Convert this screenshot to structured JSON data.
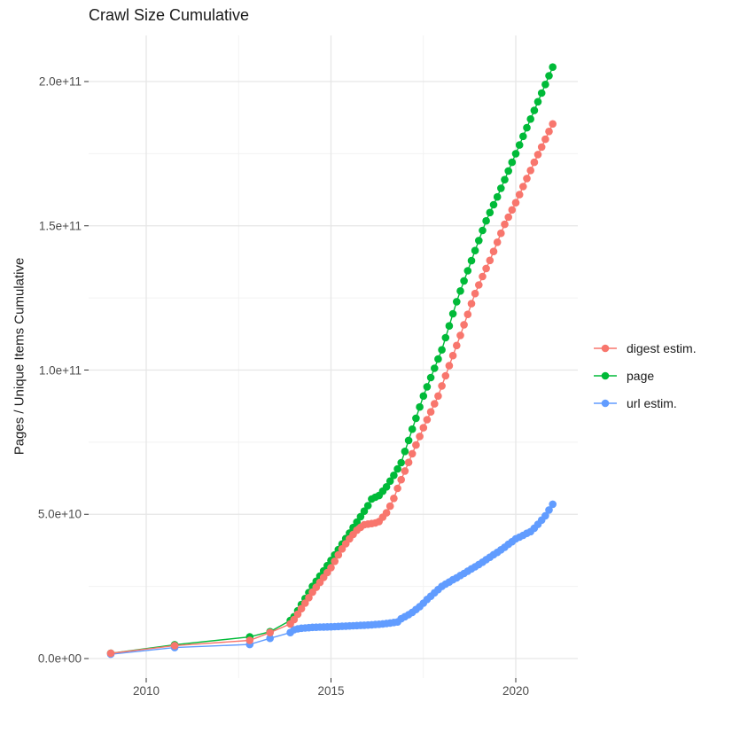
{
  "title": "Crawl Size Cumulative",
  "axes": {
    "y_label": "Pages / Unique Items Cumulative",
    "y_ticks": [
      {
        "label": "0.0e+00",
        "value_e9": 0
      },
      {
        "label": "5.0e+10",
        "value_e9": 50
      },
      {
        "label": "1.0e+11",
        "value_e9": 100
      },
      {
        "label": "1.5e+11",
        "value_e9": 150
      },
      {
        "label": "2.0e+11",
        "value_e9": 200
      }
    ],
    "x_ticks": [
      {
        "label": "2010",
        "year": 2010
      },
      {
        "label": "2015",
        "year": 2015
      },
      {
        "label": "2020",
        "year": 2020
      }
    ]
  },
  "legend": {
    "items": [
      {
        "label": "digest estim.",
        "color": "#F8766D"
      },
      {
        "label": "page",
        "color": "#00BA38"
      },
      {
        "label": "url estim.",
        "color": "#619CFF"
      }
    ]
  },
  "colors": {
    "digest": "#F8766D",
    "page": "#00BA38",
    "url": "#619CFF",
    "grid_major": "#E6E6E6",
    "grid_minor": "#F2F2F2",
    "tick_mark": "#333333",
    "tick_text": "#4d4d4d",
    "text": "#1a1a1a"
  },
  "chart_data": {
    "type": "line",
    "title": "Crawl Size Cumulative",
    "xlabel": "",
    "ylabel": "Pages / Unique Items Cumulative",
    "x_unit": "year (decimal)",
    "y_unit": "items, billions (1e9)",
    "xlim": [
      2008.4,
      2021.7
    ],
    "ylim_e9": [
      -7,
      216
    ],
    "grid": {
      "major_x": [
        2010,
        2015,
        2020
      ],
      "minor_x": [
        2012.5,
        2017.5
      ],
      "major_y_e9": [
        0,
        50,
        100,
        150,
        200
      ],
      "minor_y_e9": [
        25,
        75,
        125,
        175
      ]
    },
    "legend_position": "right",
    "marker": "point",
    "series": [
      {
        "name": "digest estim.",
        "key": "digest",
        "color": "#F8766D",
        "points": [
          [
            2009.04,
            1.8
          ],
          [
            2010.77,
            4.5
          ],
          [
            2012.8,
            6.3
          ],
          [
            2013.35,
            9.0
          ],
          [
            2013.9,
            12.0
          ],
          [
            2014.0,
            13.5
          ],
          [
            2014.1,
            15.4
          ],
          [
            2014.2,
            17.3
          ],
          [
            2014.3,
            19.2
          ],
          [
            2014.4,
            21.1
          ],
          [
            2014.5,
            23.0
          ],
          [
            2014.6,
            24.7
          ],
          [
            2014.7,
            26.4
          ],
          [
            2014.8,
            28.1
          ],
          [
            2014.9,
            29.8
          ],
          [
            2015.0,
            31.5
          ],
          [
            2015.1,
            33.7
          ],
          [
            2015.2,
            35.9
          ],
          [
            2015.3,
            38.0
          ],
          [
            2015.4,
            39.8
          ],
          [
            2015.5,
            41.5
          ],
          [
            2015.6,
            43.0
          ],
          [
            2015.7,
            44.5
          ],
          [
            2015.8,
            45.5
          ],
          [
            2015.9,
            46.4
          ],
          [
            2016.0,
            46.6
          ],
          [
            2016.1,
            46.8
          ],
          [
            2016.2,
            47.0
          ],
          [
            2016.3,
            47.5
          ],
          [
            2016.4,
            49.0
          ],
          [
            2016.5,
            50.5
          ],
          [
            2016.6,
            52.8
          ],
          [
            2016.7,
            55.5
          ],
          [
            2016.8,
            59.0
          ],
          [
            2016.9,
            62.0
          ],
          [
            2017.0,
            65.0
          ],
          [
            2017.1,
            68.0
          ],
          [
            2017.2,
            71.0
          ],
          [
            2017.3,
            74.0
          ],
          [
            2017.4,
            77.0
          ],
          [
            2017.5,
            80.0
          ],
          [
            2017.6,
            82.8
          ],
          [
            2017.7,
            85.5
          ],
          [
            2017.8,
            88.3
          ],
          [
            2017.9,
            91.0
          ],
          [
            2018.0,
            94.5
          ],
          [
            2018.1,
            98.0
          ],
          [
            2018.2,
            101.5
          ],
          [
            2018.3,
            105.0
          ],
          [
            2018.4,
            108.5
          ],
          [
            2018.5,
            112.0
          ],
          [
            2018.6,
            115.7
          ],
          [
            2018.7,
            119.3
          ],
          [
            2018.8,
            123.0
          ],
          [
            2018.9,
            126.5
          ],
          [
            2019.0,
            129.5
          ],
          [
            2019.1,
            132.4
          ],
          [
            2019.2,
            135.2
          ],
          [
            2019.3,
            138.0
          ],
          [
            2019.4,
            141.1
          ],
          [
            2019.5,
            144.3
          ],
          [
            2019.6,
            147.4
          ],
          [
            2019.7,
            150.5
          ],
          [
            2019.8,
            153.0
          ],
          [
            2019.9,
            155.5
          ],
          [
            2020.0,
            158.0
          ],
          [
            2020.1,
            160.8
          ],
          [
            2020.2,
            163.6
          ],
          [
            2020.3,
            166.4
          ],
          [
            2020.4,
            169.2
          ],
          [
            2020.5,
            172.0
          ],
          [
            2020.6,
            174.7
          ],
          [
            2020.7,
            177.3
          ],
          [
            2020.8,
            180.0
          ],
          [
            2020.9,
            182.7
          ],
          [
            2021.0,
            185.3
          ]
        ]
      },
      {
        "name": "page",
        "key": "page",
        "color": "#00BA38",
        "points": [
          [
            2009.04,
            1.8
          ],
          [
            2010.77,
            4.8
          ],
          [
            2012.8,
            7.5
          ],
          [
            2013.35,
            9.3
          ],
          [
            2013.9,
            13.2
          ],
          [
            2014.0,
            14.5
          ],
          [
            2014.1,
            16.6
          ],
          [
            2014.2,
            18.7
          ],
          [
            2014.3,
            20.8
          ],
          [
            2014.4,
            22.9
          ],
          [
            2014.5,
            25.0
          ],
          [
            2014.6,
            26.8
          ],
          [
            2014.7,
            28.6
          ],
          [
            2014.8,
            30.4
          ],
          [
            2014.9,
            32.2
          ],
          [
            2015.0,
            34.0
          ],
          [
            2015.1,
            35.9
          ],
          [
            2015.2,
            37.8
          ],
          [
            2015.3,
            39.7
          ],
          [
            2015.4,
            41.6
          ],
          [
            2015.5,
            43.5
          ],
          [
            2015.6,
            45.4
          ],
          [
            2015.7,
            47.3
          ],
          [
            2015.8,
            49.2
          ],
          [
            2015.9,
            51.1
          ],
          [
            2016.0,
            53.0
          ],
          [
            2016.1,
            55.3
          ],
          [
            2016.2,
            55.9
          ],
          [
            2016.3,
            56.5
          ],
          [
            2016.4,
            58.0
          ],
          [
            2016.5,
            59.5
          ],
          [
            2016.6,
            61.5
          ],
          [
            2016.7,
            63.5
          ],
          [
            2016.8,
            65.7
          ],
          [
            2016.9,
            67.9
          ],
          [
            2017.0,
            71.8
          ],
          [
            2017.1,
            75.6
          ],
          [
            2017.2,
            79.5
          ],
          [
            2017.3,
            83.3
          ],
          [
            2017.4,
            87.2
          ],
          [
            2017.5,
            91.0
          ],
          [
            2017.6,
            94.2
          ],
          [
            2017.7,
            97.4
          ],
          [
            2017.8,
            100.6
          ],
          [
            2017.9,
            103.8
          ],
          [
            2018.0,
            107.0
          ],
          [
            2018.1,
            111.2
          ],
          [
            2018.2,
            115.3
          ],
          [
            2018.3,
            119.5
          ],
          [
            2018.4,
            123.7
          ],
          [
            2018.5,
            127.4
          ],
          [
            2018.6,
            130.9
          ],
          [
            2018.7,
            134.4
          ],
          [
            2018.8,
            137.9
          ],
          [
            2018.9,
            141.4
          ],
          [
            2019.0,
            144.9
          ],
          [
            2019.1,
            148.4
          ],
          [
            2019.2,
            151.7
          ],
          [
            2019.3,
            154.6
          ],
          [
            2019.4,
            157.3
          ],
          [
            2019.5,
            160.0
          ],
          [
            2019.6,
            163.0
          ],
          [
            2019.7,
            166.0
          ],
          [
            2019.8,
            169.0
          ],
          [
            2019.9,
            172.0
          ],
          [
            2020.0,
            175.0
          ],
          [
            2020.1,
            178.0
          ],
          [
            2020.2,
            181.0
          ],
          [
            2020.3,
            184.0
          ],
          [
            2020.4,
            187.0
          ],
          [
            2020.5,
            190.0
          ],
          [
            2020.6,
            193.0
          ],
          [
            2020.7,
            196.0
          ],
          [
            2020.8,
            199.0
          ],
          [
            2020.9,
            202.0
          ],
          [
            2021.0,
            205.0
          ]
        ]
      },
      {
        "name": "url estim.",
        "key": "url",
        "color": "#619CFF",
        "points": [
          [
            2009.04,
            1.5
          ],
          [
            2010.77,
            3.8
          ],
          [
            2012.8,
            4.9
          ],
          [
            2013.35,
            7.0
          ],
          [
            2013.9,
            9.0
          ],
          [
            2014.0,
            10.0
          ],
          [
            2014.1,
            10.3
          ],
          [
            2014.2,
            10.5
          ],
          [
            2014.3,
            10.6
          ],
          [
            2014.4,
            10.7
          ],
          [
            2014.5,
            10.8
          ],
          [
            2014.6,
            10.85
          ],
          [
            2014.7,
            10.9
          ],
          [
            2014.8,
            10.93
          ],
          [
            2014.9,
            10.97
          ],
          [
            2015.0,
            11.0
          ],
          [
            2015.1,
            11.06
          ],
          [
            2015.2,
            11.12
          ],
          [
            2015.3,
            11.18
          ],
          [
            2015.4,
            11.24
          ],
          [
            2015.5,
            11.3
          ],
          [
            2015.6,
            11.36
          ],
          [
            2015.7,
            11.42
          ],
          [
            2015.8,
            11.48
          ],
          [
            2015.9,
            11.54
          ],
          [
            2016.0,
            11.6
          ],
          [
            2016.1,
            11.7
          ],
          [
            2016.2,
            11.8
          ],
          [
            2016.3,
            11.9
          ],
          [
            2016.4,
            12.0
          ],
          [
            2016.5,
            12.17
          ],
          [
            2016.6,
            12.33
          ],
          [
            2016.7,
            12.5
          ],
          [
            2016.8,
            12.7
          ],
          [
            2016.9,
            13.8
          ],
          [
            2017.0,
            14.5
          ],
          [
            2017.1,
            15.2
          ],
          [
            2017.2,
            16.0
          ],
          [
            2017.3,
            17.0
          ],
          [
            2017.4,
            18.0
          ],
          [
            2017.5,
            19.2
          ],
          [
            2017.6,
            20.5
          ],
          [
            2017.7,
            21.6
          ],
          [
            2017.8,
            22.8
          ],
          [
            2017.9,
            23.9
          ],
          [
            2018.0,
            25.0
          ],
          [
            2018.1,
            25.8
          ],
          [
            2018.2,
            26.5
          ],
          [
            2018.3,
            27.3
          ],
          [
            2018.4,
            28.0
          ],
          [
            2018.5,
            28.8
          ],
          [
            2018.6,
            29.5
          ],
          [
            2018.7,
            30.3
          ],
          [
            2018.8,
            31.1
          ],
          [
            2018.9,
            31.8
          ],
          [
            2019.0,
            32.6
          ],
          [
            2019.1,
            33.4
          ],
          [
            2019.2,
            34.3
          ],
          [
            2019.3,
            35.1
          ],
          [
            2019.4,
            36.0
          ],
          [
            2019.5,
            36.8
          ],
          [
            2019.6,
            37.7
          ],
          [
            2019.7,
            38.6
          ],
          [
            2019.8,
            39.6
          ],
          [
            2019.9,
            40.5
          ],
          [
            2020.0,
            41.5
          ],
          [
            2020.1,
            42.1
          ],
          [
            2020.2,
            42.7
          ],
          [
            2020.3,
            43.4
          ],
          [
            2020.4,
            44.0
          ],
          [
            2020.5,
            45.2
          ],
          [
            2020.6,
            46.5
          ],
          [
            2020.7,
            48.0
          ],
          [
            2020.8,
            49.5
          ],
          [
            2020.9,
            51.5
          ],
          [
            2021.0,
            53.5
          ]
        ]
      }
    ]
  }
}
